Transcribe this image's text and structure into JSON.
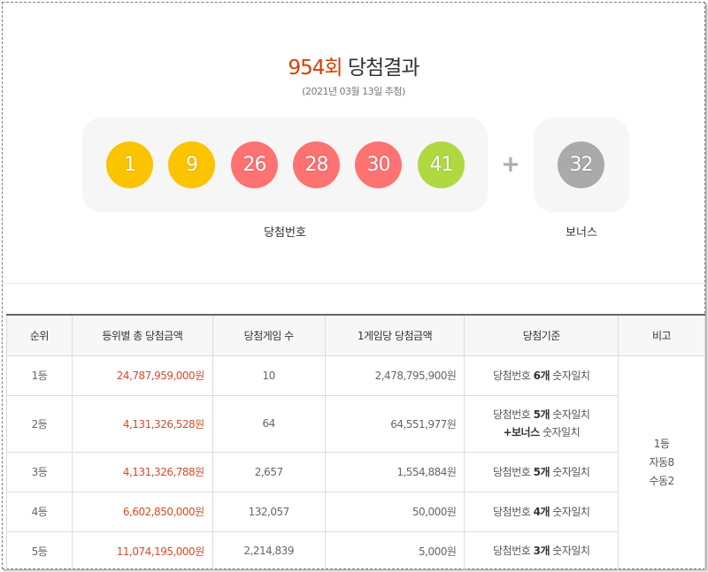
{
  "header": {
    "round": "954회",
    "title_suffix": "당첨결과",
    "draw_date": "(2021년 03월 13일 추첨)"
  },
  "numbers": [
    {
      "value": "1",
      "color": "#fbc400"
    },
    {
      "value": "9",
      "color": "#fbc400"
    },
    {
      "value": "26",
      "color": "#ff7272"
    },
    {
      "value": "28",
      "color": "#ff7272"
    },
    {
      "value": "30",
      "color": "#ff7272"
    },
    {
      "value": "41",
      "color": "#b0d840"
    }
  ],
  "bonus": {
    "value": "32",
    "color": "#aaaaaa"
  },
  "plus_symbol": "+",
  "labels": {
    "winning": "당첨번호",
    "bonus": "보너스"
  },
  "table": {
    "headers": [
      "순위",
      "등위별 총 당첨금액",
      "당첨게임 수",
      "1게임당 당첨금액",
      "당첨기준",
      "비고"
    ],
    "rows": [
      {
        "rank": "1등",
        "total": "24,787,959,000원",
        "count": "10",
        "per_game": "2,478,795,900원",
        "crit_pre": "당첨번호 ",
        "crit_bold": "6개",
        "crit_post": " 숫자일치",
        "crit_line2": ""
      },
      {
        "rank": "2등",
        "total": "4,131,326,528원",
        "count": "64",
        "per_game": "64,551,977원",
        "crit_pre": "당첨번호 ",
        "crit_bold": "5개",
        "crit_post": " 숫자일치",
        "crit_line2_bold": "+보너스",
        "crit_line2_post": " 숫자일치"
      },
      {
        "rank": "3등",
        "total": "4,131,326,788원",
        "count": "2,657",
        "per_game": "1,554,884원",
        "crit_pre": "당첨번호 ",
        "crit_bold": "5개",
        "crit_post": " 숫자일치"
      },
      {
        "rank": "4등",
        "total": "6,602,850,000원",
        "count": "132,057",
        "per_game": "50,000원",
        "crit_pre": "당첨번호 ",
        "crit_bold": "4개",
        "crit_post": " 숫자일치"
      },
      {
        "rank": "5등",
        "total": "11,074,195,000원",
        "count": "2,214,839",
        "per_game": "5,000원",
        "crit_pre": "당첨번호 ",
        "crit_bold": "3개",
        "crit_post": " 숫자일치"
      }
    ],
    "note": {
      "line1": "1등",
      "line2": "자동8",
      "line3": "수동2"
    }
  }
}
